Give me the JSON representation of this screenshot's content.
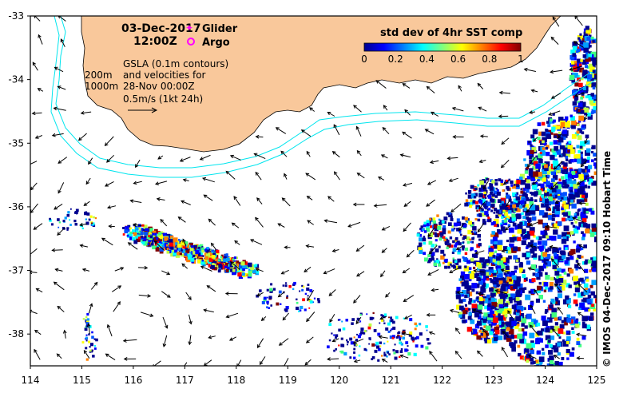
{
  "title": {
    "date": "03-Dec-2017",
    "time": "12:00Z"
  },
  "legend": {
    "glider_label": "Glider",
    "glider_color": "#ff00ff",
    "argo_label": "Argo",
    "argo_color": "#ff00ff"
  },
  "contours_label": {
    "line1": "200m",
    "line2": "1000m",
    "color": "#00e5ee"
  },
  "gsla_note": {
    "line1": "GSLA (0.1m contours)",
    "line2": "and velocities for",
    "line3": "28-Nov 00:00Z",
    "line4": "0.5m/s (1kt 24h)"
  },
  "colorbar": {
    "title": "std dev of 4hr SST comp",
    "ticks": [
      "0",
      "0.2",
      "0.4",
      "0.6",
      "0.8",
      "1"
    ],
    "range": [
      0,
      1
    ],
    "colormap": "jet"
  },
  "axes": {
    "x_ticks": [
      "114",
      "115",
      "116",
      "117",
      "118",
      "119",
      "120",
      "121",
      "122",
      "123",
      "124",
      "125"
    ],
    "y_ticks": [
      "-33",
      "-34",
      "-35",
      "-36",
      "-37",
      "-38"
    ],
    "xlim": [
      114,
      125
    ],
    "ylim": [
      -38.5,
      -33
    ]
  },
  "side_label": "© IMOS 04-Dec-2017 09:10 Hobart Time",
  "colors": {
    "land": "#f9c89b",
    "ocean": "#ffffff",
    "arrow": "#000000",
    "bathymetry": "#00e5ee"
  }
}
